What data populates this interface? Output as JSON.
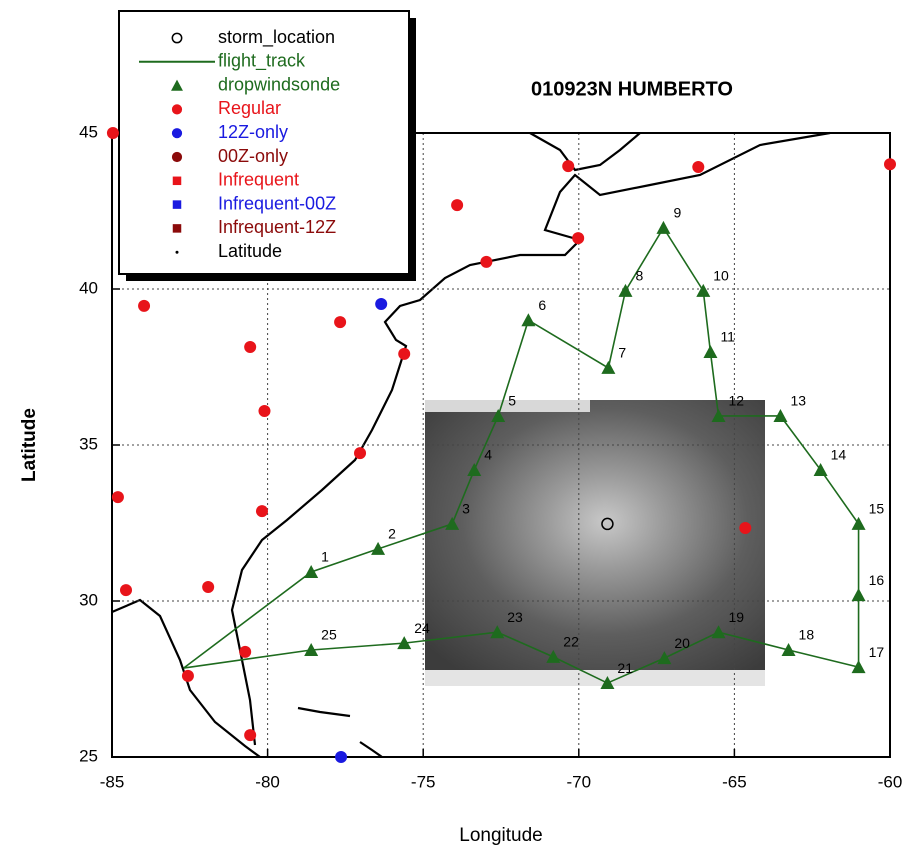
{
  "chart_data": {
    "type": "map",
    "title": "010923N HUMBERTO",
    "x_label": "Longitude",
    "y_label": "Latitude",
    "xlim": [
      -85,
      -60
    ],
    "ylim": [
      25,
      45
    ],
    "xticks": [
      -85,
      -80,
      -75,
      -70,
      -65,
      -60
    ],
    "yticks": [
      25,
      30,
      35,
      40,
      45
    ],
    "grid": true,
    "legend": "top-left",
    "series": [
      {
        "name": "storm_location",
        "marker": "open-circle",
        "color": "#000000",
        "x": [
          -69.08
        ],
        "y": [
          32.47
        ]
      },
      {
        "name": "flight_track",
        "marker": "line",
        "color": "#1e6b1e",
        "x": [
          -82.7,
          -78.6,
          -76.45,
          -74.07,
          -73.36,
          -72.59,
          -71.62,
          -69.05,
          -68.5,
          -67.28,
          -66.0,
          -65.77,
          -65.51,
          -63.52,
          -62.23,
          -61.01,
          -61.01,
          -61.01,
          -63.26,
          -65.51,
          -67.25,
          -69.08,
          -70.82,
          -72.62,
          -75.61,
          -78.6,
          -82.7
        ],
        "y": [
          27.85,
          30.93,
          31.67,
          32.47,
          34.2,
          35.93,
          39.0,
          37.47,
          39.94,
          41.96,
          39.94,
          37.98,
          35.93,
          35.93,
          34.2,
          32.47,
          30.19,
          27.88,
          28.43,
          29.0,
          28.17,
          27.37,
          28.21,
          29.0,
          28.65,
          28.43,
          27.85
        ]
      },
      {
        "name": "dropwindsonde",
        "marker": "triangle",
        "color": "#1e6b1e",
        "x": [
          -78.6,
          -76.45,
          -74.07,
          -73.36,
          -72.59,
          -71.62,
          -69.05,
          -68.5,
          -67.28,
          -66.0,
          -65.77,
          -65.51,
          -63.52,
          -62.23,
          -61.01,
          -61.01,
          -61.01,
          -63.26,
          -65.51,
          -67.25,
          -69.08,
          -70.82,
          -72.62,
          -75.61,
          -78.6
        ],
        "y": [
          30.93,
          31.67,
          32.47,
          34.2,
          35.93,
          39.0,
          37.47,
          39.94,
          41.96,
          39.94,
          37.98,
          35.93,
          35.93,
          34.2,
          32.47,
          30.19,
          27.88,
          28.43,
          29.0,
          28.17,
          27.37,
          28.21,
          29.0,
          28.65,
          28.43
        ],
        "labels": [
          "1",
          "2",
          "3",
          "4",
          "5",
          "6",
          "7",
          "8",
          "9",
          "10",
          "11",
          "12",
          "13",
          "14",
          "15",
          "16",
          "17",
          "18",
          "19",
          "20",
          "21",
          "22",
          "23",
          "24",
          "25"
        ]
      },
      {
        "name": "Regular",
        "marker": "circle",
        "color": "#e8141a",
        "x": [
          -84.97,
          -83.97,
          -80.56,
          -80.1,
          -77.67,
          -75.61,
          -77.03,
          -80.18,
          -84.81,
          -84.55,
          -81.91,
          -80.72,
          -82.56,
          -80.56,
          -73.91,
          -72.97,
          -70.34,
          -70.02,
          -66.16,
          -60.0,
          -64.65
        ],
        "y": [
          45.0,
          39.46,
          38.14,
          36.09,
          38.94,
          37.92,
          34.74,
          32.88,
          33.33,
          30.35,
          30.45,
          28.37,
          27.6,
          25.7,
          42.69,
          40.87,
          43.94,
          41.63,
          43.91,
          44.0,
          32.34
        ]
      },
      {
        "name": "12Z-only",
        "marker": "circle",
        "color": "#1a1ae0",
        "x": [
          -76.35,
          -77.64
        ],
        "y": [
          39.52,
          25.0
        ]
      },
      {
        "name": "00Z-only",
        "marker": "circle",
        "color": "#8b0a0a",
        "x": [],
        "y": []
      },
      {
        "name": "Infrequent",
        "marker": "square",
        "color": "#e8141a",
        "x": [],
        "y": []
      },
      {
        "name": "Infrequent-00Z",
        "marker": "square",
        "color": "#1a1ae0",
        "x": [],
        "y": []
      },
      {
        "name": "Infrequent-12Z",
        "marker": "square",
        "color": "#8b0a0a",
        "x": [],
        "y": []
      },
      {
        "name": "Latitude",
        "marker": "dot",
        "color": "#000000",
        "x": [],
        "y": []
      }
    ]
  }
}
